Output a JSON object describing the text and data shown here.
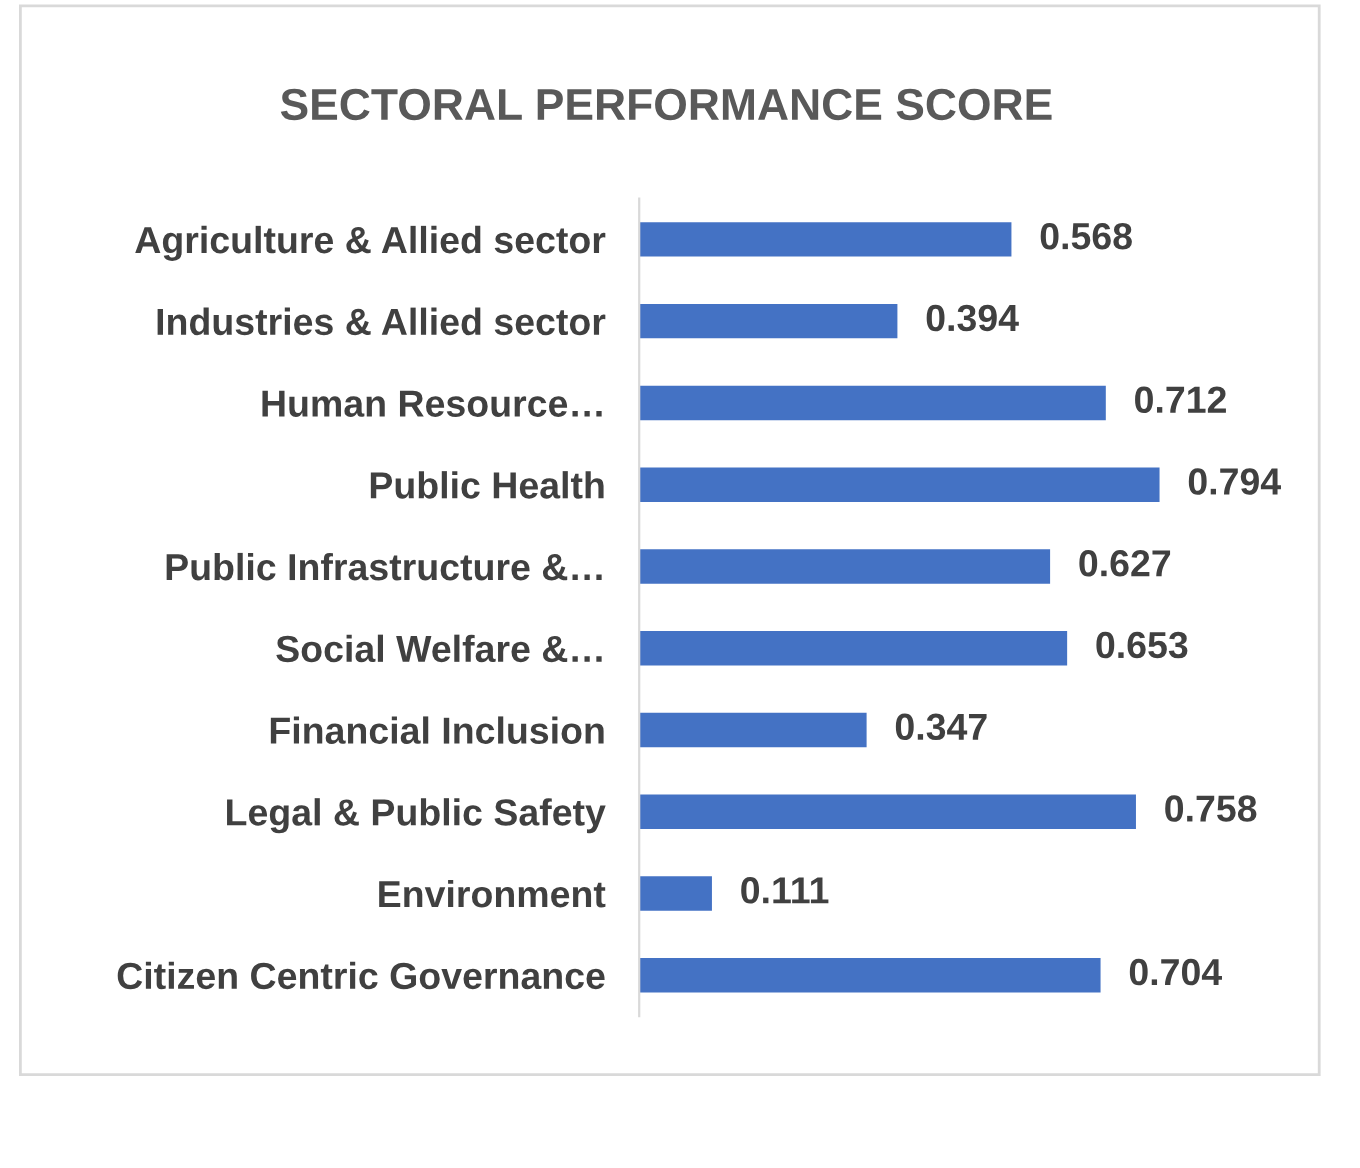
{
  "chart_data": {
    "type": "bar",
    "orientation": "horizontal",
    "title": "SECTORAL PERFORMANCE SCORE",
    "categories": [
      "Agriculture & Allied sector",
      "Industries & Allied sector",
      "Human Resource…",
      "Public Health",
      "Public Infrastructure &…",
      "Social Welfare &…",
      "Financial Inclusion",
      "Legal & Public Safety",
      "Environment",
      "Citizen Centric Governance"
    ],
    "values": [
      0.568,
      0.394,
      0.712,
      0.794,
      0.627,
      0.653,
      0.347,
      0.758,
      0.111,
      0.704
    ],
    "color": "#4472c4",
    "data_labels": true,
    "tick_labels": "y"
  }
}
